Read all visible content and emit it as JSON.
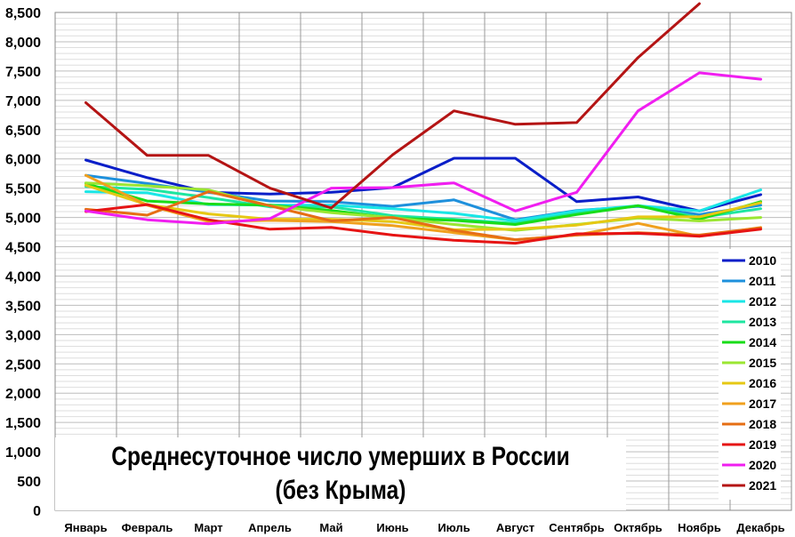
{
  "chart_data": {
    "type": "line",
    "title": "Среднесуточное число умерших в России (без Крыма)",
    "xlabel": "",
    "ylabel": "",
    "ylim": [
      0,
      8500
    ],
    "y_ticks": [
      "0",
      "500",
      "1,000",
      "1,500",
      "2,000",
      "2,500",
      "3,000",
      "3,500",
      "4,000",
      "4,500",
      "5,000",
      "5,500",
      "6,000",
      "6,500",
      "7,000",
      "7,500",
      "8,000",
      "8,500"
    ],
    "y_tick_values": [
      0,
      500,
      1000,
      1500,
      2000,
      2500,
      3000,
      3500,
      4000,
      4500,
      5000,
      5500,
      6000,
      6500,
      7000,
      7500,
      8000,
      8500
    ],
    "categories": [
      "Январь",
      "Февраль",
      "Март",
      "Апрель",
      "Май",
      "Июнь",
      "Июль",
      "Август",
      "Сентябрь",
      "Октябрь",
      "Ноябрь",
      "Декабрь"
    ],
    "grid": true,
    "legend_position": "right",
    "series": [
      {
        "name": "2010",
        "color": "#0a1ec8",
        "values": [
          5980,
          5680,
          5430,
          5400,
          5430,
          5510,
          6010,
          6010,
          5270,
          5350,
          5110,
          5390
        ]
      },
      {
        "name": "2011",
        "color": "#1e90dc",
        "values": [
          5720,
          5580,
          5430,
          5280,
          5270,
          5190,
          5300,
          4960,
          5120,
          5190,
          5050,
          5210
        ]
      },
      {
        "name": "2012",
        "color": "#19e6e6",
        "values": [
          5440,
          5420,
          5220,
          5210,
          5210,
          5150,
          5070,
          4940,
          5110,
          5200,
          5110,
          5470
        ]
      },
      {
        "name": "2013",
        "color": "#1ee6a0",
        "values": [
          5530,
          5480,
          5340,
          5180,
          5180,
          5030,
          4970,
          4900,
          5070,
          5200,
          5000,
          5150
        ]
      },
      {
        "name": "2014",
        "color": "#19dc19",
        "values": [
          5580,
          5280,
          5230,
          5210,
          5120,
          4990,
          4950,
          4880,
          5050,
          5200,
          4970,
          5270
        ]
      },
      {
        "name": "2015",
        "color": "#9be632",
        "values": [
          5590,
          5540,
          5470,
          5200,
          5080,
          5000,
          4880,
          4780,
          4880,
          4990,
          4940,
          5000
        ]
      },
      {
        "name": "2016",
        "color": "#e6c814",
        "values": [
          5550,
          5220,
          5060,
          4970,
          4970,
          4930,
          4790,
          4800,
          4870,
          5010,
          5010,
          5250
        ]
      },
      {
        "name": "2017",
        "color": "#f0a01e",
        "values": [
          5720,
          5210,
          4930,
          4950,
          4930,
          4860,
          4740,
          4620,
          4700,
          4900,
          4680,
          4830
        ]
      },
      {
        "name": "2018",
        "color": "#e66e14",
        "values": [
          5140,
          5040,
          5440,
          5200,
          4940,
          5000,
          4780,
          4620,
          4700,
          4740,
          4700,
          4820
        ]
      },
      {
        "name": "2019",
        "color": "#e61414",
        "values": [
          5100,
          5220,
          4960,
          4800,
          4830,
          4700,
          4610,
          4560,
          4720,
          4730,
          4680,
          4800
        ]
      },
      {
        "name": "2020",
        "color": "#f01ef0",
        "values": [
          5110,
          4960,
          4890,
          4980,
          5500,
          5510,
          5590,
          5110,
          5430,
          6820,
          7470,
          7360
        ]
      },
      {
        "name": "2021",
        "color": "#b41414",
        "values": [
          6960,
          6060,
          6060,
          5500,
          5160,
          6070,
          6820,
          6590,
          6620,
          7730,
          8650,
          null
        ]
      }
    ]
  }
}
